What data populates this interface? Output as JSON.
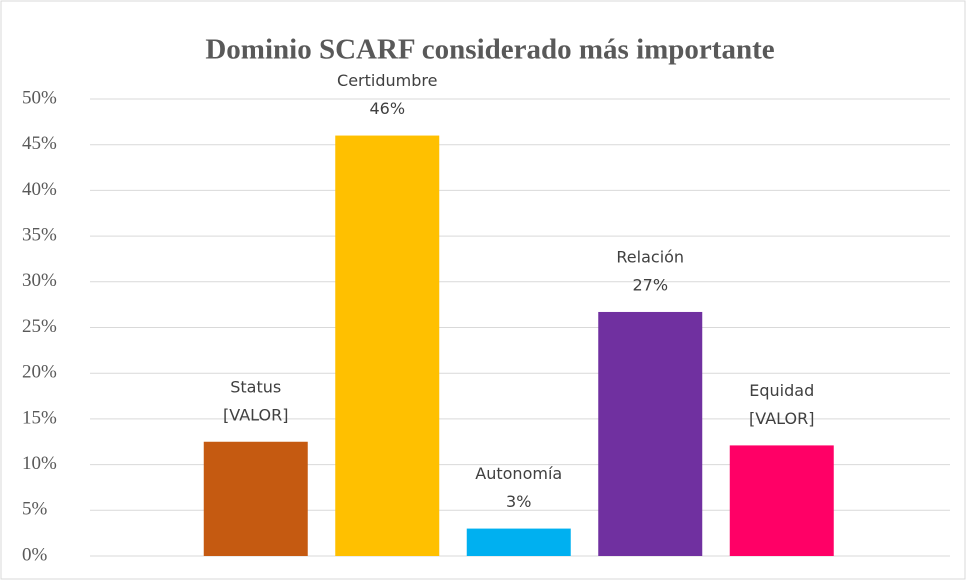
{
  "chart_data": {
    "type": "bar",
    "title": "Dominio SCARF considerado más importante",
    "categories": [
      "Status",
      "Certidumbre",
      "Autonomía",
      "Relación",
      "Equidad"
    ],
    "values": [
      12.5,
      46,
      3,
      26.7,
      12.1
    ],
    "value_labels": [
      "[VALOR]",
      "46%",
      "3%",
      "27%",
      "[VALOR]"
    ],
    "colors": [
      "#c55a11",
      "#ffc000",
      "#00b0f0",
      "#7030a0",
      "#ff0066"
    ],
    "ylim": [
      0,
      50
    ],
    "yticks": [
      {
        "value": 0,
        "label": "0%"
      },
      {
        "value": 5,
        "label": "5%"
      },
      {
        "value": 10,
        "label": "10%"
      },
      {
        "value": 15,
        "label": "15%"
      },
      {
        "value": 20,
        "label": "20%"
      },
      {
        "value": 25,
        "label": "25%"
      },
      {
        "value": 30,
        "label": "30%"
      },
      {
        "value": 35,
        "label": "35%"
      },
      {
        "value": 40,
        "label": "40%"
      },
      {
        "value": 45,
        "label": "45%"
      },
      {
        "value": 50,
        "label": "50%"
      }
    ],
    "grid": true
  }
}
